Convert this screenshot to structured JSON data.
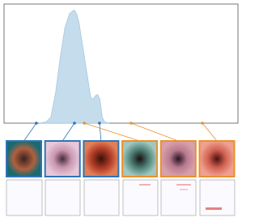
{
  "chart_data": {
    "type": "area",
    "x": [
      15,
      18,
      20,
      22,
      24,
      26,
      28,
      30,
      31,
      32,
      34,
      36,
      37,
      38,
      39,
      40,
      41,
      42,
      43,
      45
    ],
    "values": [
      0,
      0.01,
      0.05,
      0.25,
      0.55,
      0.8,
      0.92,
      0.95,
      0.92,
      0.85,
      0.6,
      0.35,
      0.22,
      0.2,
      0.23,
      0.24,
      0.2,
      0.05,
      0.01,
      0
    ],
    "color": "#c5dcec",
    "xlim": [
      0,
      100
    ],
    "ylim": [
      0,
      1
    ],
    "samples": [
      {
        "x": 13.8,
        "color": "#2f74b5"
      },
      {
        "x": 30.1,
        "color": "#2f74b5"
      },
      {
        "x": 40.8,
        "color": "#2f74b5"
      },
      {
        "x": 34.3,
        "color": "#e8912f"
      },
      {
        "x": 54.3,
        "color": "#e8912f"
      },
      {
        "x": 84.8,
        "color": "#e8912f"
      }
    ]
  }
}
